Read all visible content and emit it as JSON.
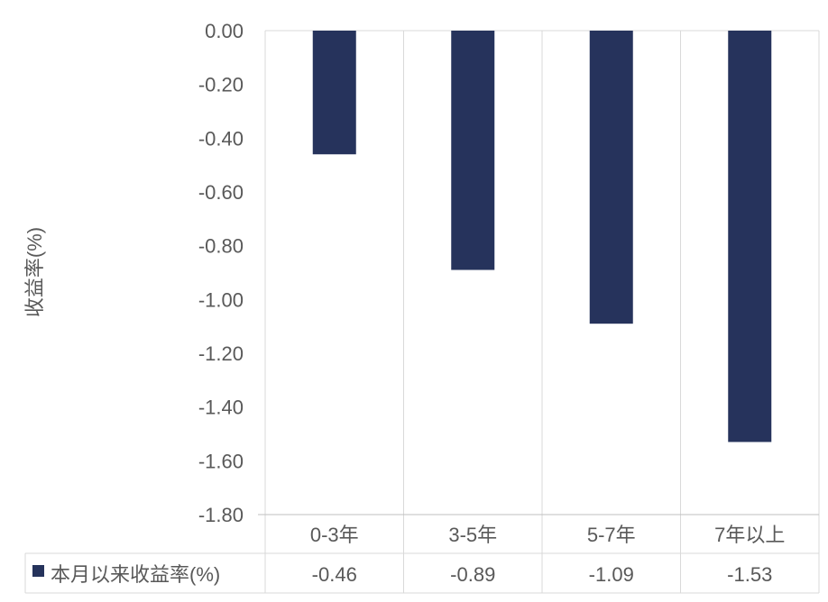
{
  "chart_data": {
    "type": "bar",
    "title": "",
    "xlabel": "",
    "ylabel": "收益率(%)",
    "ylim": [
      -1.8,
      0.0
    ],
    "yticks": [
      "0.00",
      "-0.20",
      "-0.40",
      "-0.60",
      "-0.80",
      "-1.00",
      "-1.20",
      "-1.40",
      "-1.60",
      "-1.80"
    ],
    "categories": [
      "0-3年",
      "3-5年",
      "5-7年",
      "7年以上"
    ],
    "series": [
      {
        "name": "本月以来收益率(%)",
        "values": [
          -0.46,
          -0.89,
          -1.09,
          -1.53
        ],
        "labels": [
          "-0.46",
          "-0.89",
          "-1.09",
          "-1.53"
        ]
      }
    ],
    "legend": "data-table-left",
    "grid": true,
    "data_table": true,
    "colors": {
      "bar": "#26335c",
      "grid": "#d9d9d9",
      "text": "#595959",
      "axis": "#bfbfbf"
    }
  }
}
